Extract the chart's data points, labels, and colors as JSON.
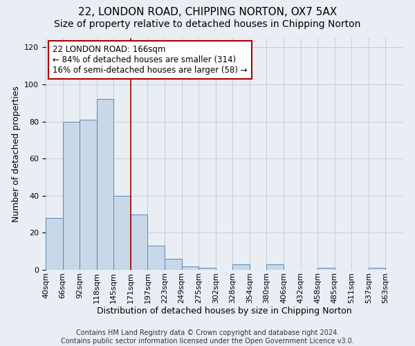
{
  "title1": "22, LONDON ROAD, CHIPPING NORTON, OX7 5AX",
  "title2": "Size of property relative to detached houses in Chipping Norton",
  "xlabel": "Distribution of detached houses by size in Chipping Norton",
  "ylabel": "Number of detached properties",
  "footer": "Contains HM Land Registry data © Crown copyright and database right 2024.\nContains public sector information licensed under the Open Government Licence v3.0.",
  "bin_labels": [
    "40sqm",
    "66sqm",
    "92sqm",
    "118sqm",
    "145sqm",
    "171sqm",
    "197sqm",
    "223sqm",
    "249sqm",
    "275sqm",
    "302sqm",
    "328sqm",
    "354sqm",
    "380sqm",
    "406sqm",
    "432sqm",
    "458sqm",
    "485sqm",
    "511sqm",
    "537sqm",
    "563sqm"
  ],
  "bar_heights": [
    28,
    80,
    81,
    92,
    40,
    30,
    13,
    6,
    2,
    1,
    0,
    3,
    0,
    3,
    0,
    0,
    1,
    0,
    0,
    1,
    0
  ],
  "bar_color": "#c8d8e8",
  "bar_edge_color": "#5588bb",
  "vline_x_label": "171sqm",
  "vline_color": "#aa0000",
  "annotation_text": "22 LONDON ROAD: 166sqm\n← 84% of detached houses are smaller (314)\n16% of semi-detached houses are larger (58) →",
  "annotation_box_color": "#ffffff",
  "annotation_box_edge": "#aa0000",
  "ylim": [
    0,
    125
  ],
  "yticks": [
    0,
    20,
    40,
    60,
    80,
    100,
    120
  ],
  "grid_color": "#cccccc",
  "bg_color": "#e8eef4",
  "title1_fontsize": 11,
  "title2_fontsize": 10,
  "xlabel_fontsize": 9,
  "ylabel_fontsize": 9,
  "tick_fontsize": 8,
  "annotation_fontsize": 8.5,
  "footer_fontsize": 7
}
